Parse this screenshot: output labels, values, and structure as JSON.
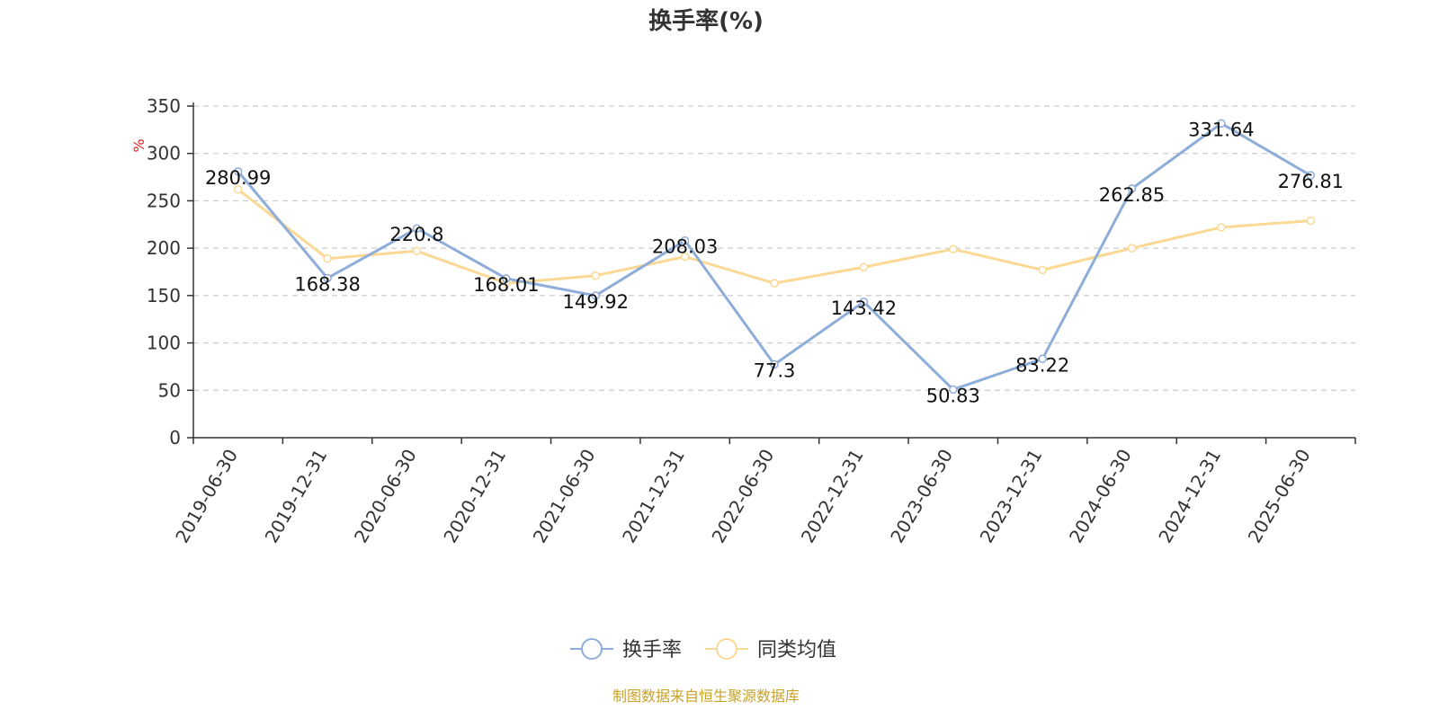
{
  "chart_data": {
    "type": "line",
    "title": "换手率(%)",
    "ylabel": "%",
    "ylim": [
      0,
      350
    ],
    "yticks": [
      0,
      50,
      100,
      150,
      200,
      250,
      300,
      350
    ],
    "grid": true,
    "legend_position": "bottom-center",
    "categories": [
      "2019-06-30",
      "2019-12-31",
      "2020-06-30",
      "2020-12-31",
      "2021-06-30",
      "2021-12-31",
      "2022-06-30",
      "2022-12-31",
      "2023-06-30",
      "2023-12-31",
      "2024-06-30",
      "2024-12-31",
      "2025-06-30"
    ],
    "series": [
      {
        "name": "换手率",
        "color": "#8eadd8",
        "values": [
          280.99,
          168.38,
          220.8,
          168.01,
          149.92,
          208.03,
          77.3,
          143.42,
          50.83,
          83.22,
          262.85,
          331.64,
          276.81
        ],
        "labels": [
          "280.99",
          "168.38",
          "220.8",
          "168.01",
          "149.92",
          "208.03",
          "77.3",
          "143.42",
          "50.83",
          "83.22",
          "262.85",
          "331.64",
          "276.81"
        ]
      },
      {
        "name": "同类均值",
        "color": "#fbd995",
        "values": [
          262,
          189,
          197,
          163,
          171,
          191,
          163,
          180,
          199,
          177,
          200,
          222,
          229
        ]
      }
    ]
  },
  "footer": {
    "source": "制图数据来自恒生聚源数据库"
  }
}
